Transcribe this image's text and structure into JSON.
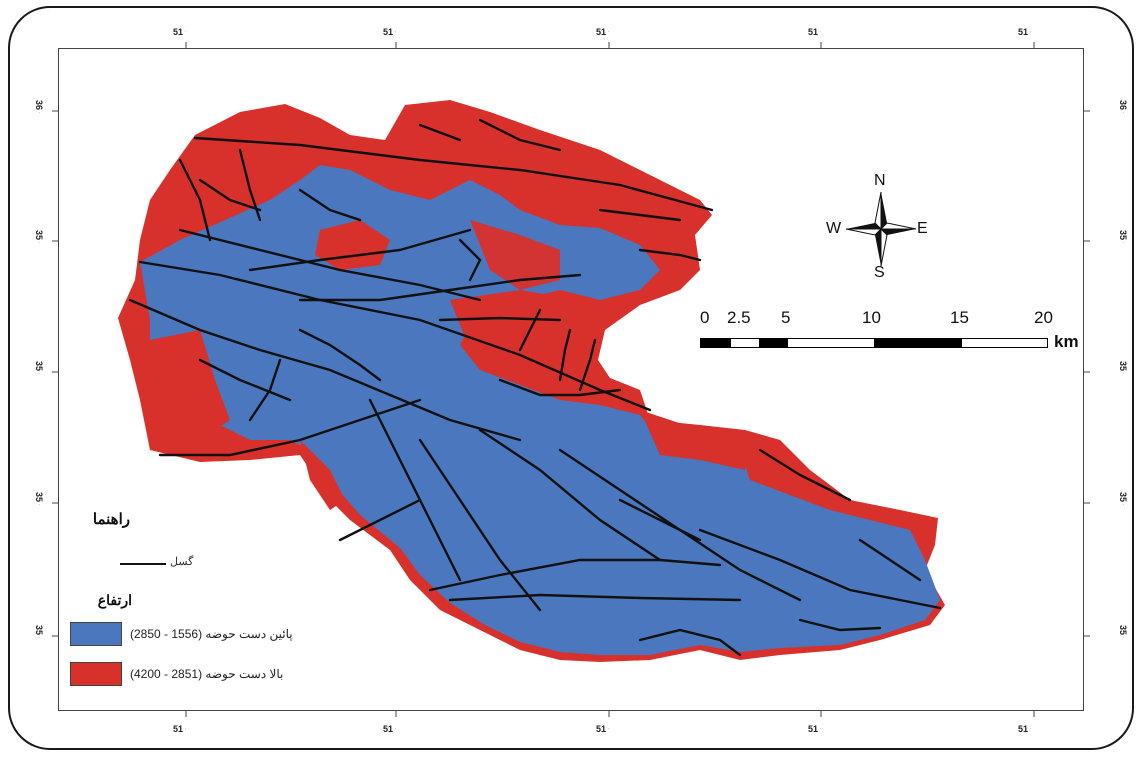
{
  "map": {
    "longitude_labels": [
      {
        "deg": "51",
        "min": "'"
      },
      {
        "deg": "51",
        "min": "'"
      },
      {
        "deg": "51",
        "min": "'"
      },
      {
        "deg": "51",
        "min": "'"
      },
      {
        "deg": "51",
        "min": "'"
      }
    ],
    "latitude_labels": [
      {
        "deg": "36",
        "min": "'"
      },
      {
        "deg": "35",
        "min": "'"
      },
      {
        "deg": "35",
        "min": "'"
      },
      {
        "deg": "35",
        "min": "'"
      },
      {
        "deg": "35",
        "min": "'"
      }
    ],
    "colors": {
      "lower_basin": "#4a77bd",
      "upper_basin": "#d8302b",
      "fault": "#111111"
    }
  },
  "north_arrow": {
    "n": "N",
    "s": "S",
    "e": "E",
    "w": "W"
  },
  "scale_bar": {
    "ticks": [
      "0",
      "2.5",
      "5",
      "10",
      "15",
      "20"
    ],
    "unit": "km"
  },
  "legend": {
    "title": "راهنما",
    "fault_label": "گسل",
    "elevation_title": "ارتفاع",
    "items": [
      {
        "label": "پائین دست حوضه (1556 - 2850)",
        "color": "#4a77bd"
      },
      {
        "label": "بالا دست حوضه (2851 - 4200)",
        "color": "#d8302b"
      }
    ]
  }
}
